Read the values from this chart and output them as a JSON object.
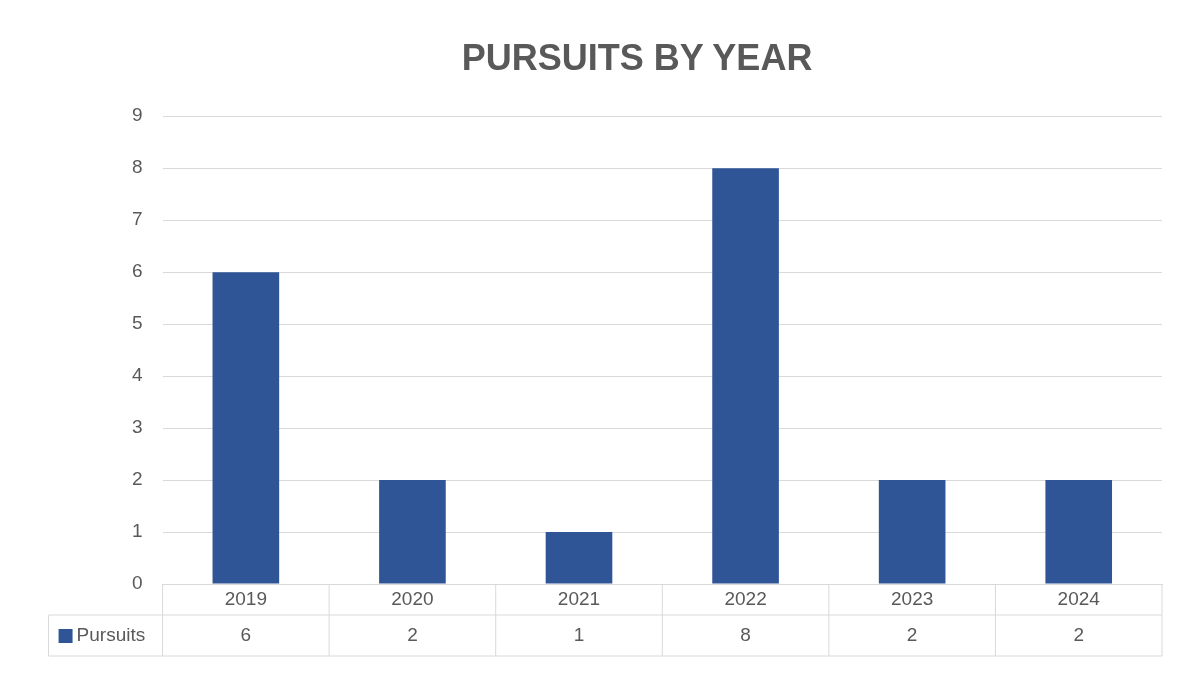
{
  "chart_data": {
    "type": "bar",
    "title": "PURSUITS BY YEAR",
    "categories": [
      "2019",
      "2020",
      "2021",
      "2022",
      "2023",
      "2024"
    ],
    "series": [
      {
        "name": "Pursuits",
        "color": "#2f5597",
        "values": [
          6,
          2,
          1,
          8,
          2,
          2
        ]
      }
    ],
    "ylim": [
      0,
      9
    ],
    "yticks": [
      0,
      1,
      2,
      3,
      4,
      5,
      6,
      7,
      8,
      9
    ],
    "grid": "y",
    "legend": "bottom",
    "data_labels": true
  }
}
